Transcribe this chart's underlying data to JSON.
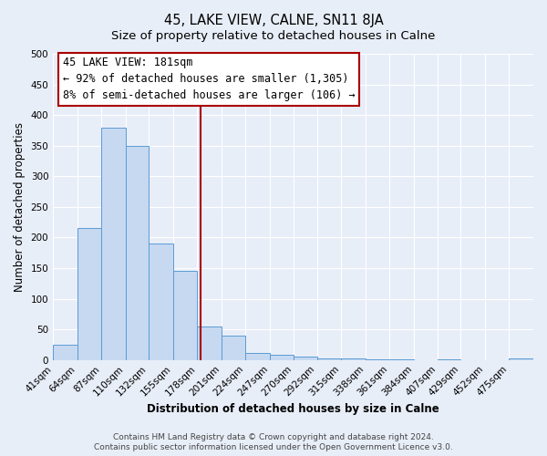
{
  "title1": "45, LAKE VIEW, CALNE, SN11 8JA",
  "title2": "Size of property relative to detached houses in Calne",
  "xlabel": "Distribution of detached houses by size in Calne",
  "ylabel": "Number of detached properties",
  "bin_edges": [
    41,
    64,
    87,
    110,
    132,
    155,
    178,
    201,
    224,
    247,
    270,
    292,
    315,
    338,
    361,
    384,
    407,
    429,
    452,
    475,
    498
  ],
  "bar_heights": [
    25,
    215,
    380,
    350,
    190,
    145,
    55,
    40,
    12,
    8,
    6,
    2,
    2,
    1,
    1,
    0,
    1,
    0,
    0,
    3
  ],
  "bar_color": "#c6d9f1",
  "bar_edge_color": "#5b9bd5",
  "property_size": 181,
  "red_line_color": "#aa0000",
  "ylim": [
    0,
    500
  ],
  "annotation_line1": "45 LAKE VIEW: 181sqm",
  "annotation_line2": "← 92% of detached houses are smaller (1,305)",
  "annotation_line3": "8% of semi-detached houses are larger (106) →",
  "annotation_box_color": "#ffffff",
  "annotation_box_edge_color": "#aa0000",
  "footer1": "Contains HM Land Registry data © Crown copyright and database right 2024.",
  "footer2": "Contains public sector information licensed under the Open Government Licence v3.0.",
  "background_color": "#e8eef8",
  "plot_bg_color": "#e8eef8",
  "grid_color": "#ffffff",
  "title_fontsize": 10.5,
  "subtitle_fontsize": 9.5,
  "tick_label_fontsize": 7.5,
  "axis_label_fontsize": 8.5,
  "footer_fontsize": 6.5
}
